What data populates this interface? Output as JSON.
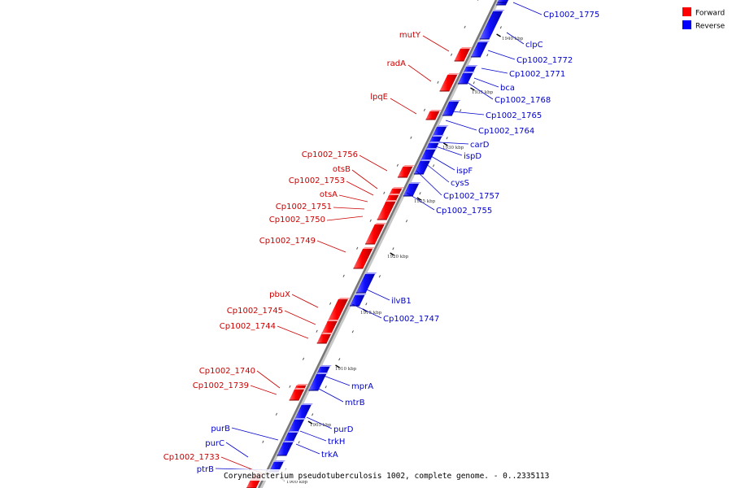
{
  "title": "Corynebacterium pseudotuberculosis 1002, complete genome. - 0..2335113",
  "legend": {
    "forward_label": "Forward",
    "reverse_label": "Reverse",
    "forward_color": "#ff0000",
    "reverse_color": "#0000ff"
  },
  "ticks": [
    "1940 kbp",
    "1935 kbp",
    "1930 kbp",
    "1925 kbp",
    "1920 kbp",
    "1915 kbp",
    "1910 kbp",
    "1905 kbp",
    "1900 kbp"
  ],
  "genes_forward": [
    "mutY",
    "radA",
    "lpqE",
    "Cp1002_1756",
    "otsB",
    "Cp1002_1753",
    "otsA",
    "Cp1002_1751",
    "Cp1002_1750",
    "Cp1002_1749",
    "pbuX",
    "Cp1002_1745",
    "Cp1002_1744",
    "Cp1002_1740",
    "Cp1002_1739",
    "Cp1002_1733"
  ],
  "genes_reverse": [
    "Cp1002_1775",
    "clpC",
    "Cp1002_1772",
    "Cp1002_1771",
    "bca",
    "Cp1002_1768",
    "Cp1002_1765",
    "Cp1002_1764",
    "carD",
    "ispD",
    "ispF",
    "cysS",
    "Cp1002_1757",
    "Cp1002_1755",
    "ilvB1",
    "Cp1002_1747",
    "mprA",
    "mtrB",
    "purD",
    "trkH",
    "trkA",
    "purB",
    "purC",
    "ptrB"
  ]
}
